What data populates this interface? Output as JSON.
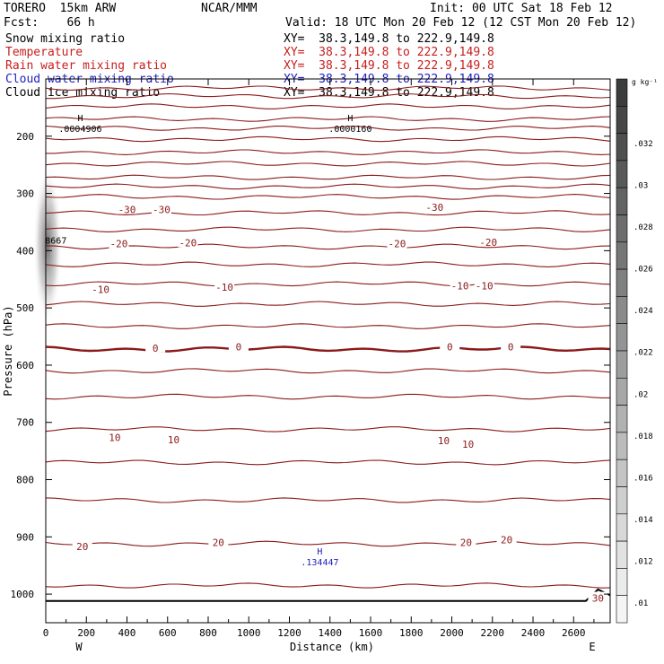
{
  "header": {
    "model": "TORERO  15km ARW",
    "org": "NCAR/MMM",
    "init": "Init: 00 UTC Sat 18 Feb 12",
    "fcst": "Fcst:    66 h",
    "valid": "Valid: 18 UTC Mon 20 Feb 12 (12 CST Mon 20 Feb 12)",
    "fields": [
      {
        "name": "Snow mixing ratio",
        "xy": "XY=  38.3,149.8 to 222.9,149.8",
        "color": "#000000"
      },
      {
        "name": "Temperature",
        "xy": "XY=  38.3,149.8 to 222.9,149.8",
        "color": "#c81e1e"
      },
      {
        "name": "Rain water mixing ratio",
        "xy": "XY=  38.3,149.8 to 222.9,149.8",
        "color": "#c81e1e"
      },
      {
        "name": "Cloud water mixing ratio",
        "xy": "XY=  38.3,149.8 to 222.9,149.8",
        "color": "#2020c0"
      },
      {
        "name": "Cloud ice mixing ratio",
        "xy": "XY=  38.3,149.8 to 222.9,149.8",
        "color": "#000000"
      }
    ]
  },
  "chart_data": {
    "type": "line",
    "xlabel": "Distance (km)",
    "ylabel": "Pressure (hPa)",
    "xlim": [
      0,
      2780
    ],
    "ylim": [
      1050,
      100
    ],
    "x_ticks": [
      0,
      200,
      400,
      600,
      800,
      1000,
      1200,
      1400,
      1600,
      1800,
      2000,
      2200,
      2400,
      2600
    ],
    "y_ticks": [
      200,
      300,
      400,
      500,
      600,
      700,
      800,
      900,
      1000
    ],
    "end_labels": {
      "left": "W",
      "right": "E"
    },
    "isotherm_color": "#8b1a1a",
    "isotherm_pressures": [
      116,
      130,
      148,
      170,
      186,
      205,
      228,
      248,
      272,
      288,
      306,
      334,
      363,
      393,
      424,
      458,
      493,
      532,
      572,
      610,
      655,
      712,
      770,
      836,
      912,
      985
    ],
    "temperature_labels": [
      {
        "text": "-30",
        "x": 400,
        "p": 328
      },
      {
        "text": "-30",
        "x": 570,
        "p": 328
      },
      {
        "text": "-30",
        "x": 1915,
        "p": 324
      },
      {
        "text": "-20",
        "x": 360,
        "p": 388
      },
      {
        "text": "-20",
        "x": 700,
        "p": 386
      },
      {
        "text": "-20",
        "x": 1730,
        "p": 388
      },
      {
        "text": "-20",
        "x": 2180,
        "p": 385
      },
      {
        "text": "-10",
        "x": 270,
        "p": 468
      },
      {
        "text": "-10",
        "x": 880,
        "p": 464
      },
      {
        "text": "-10",
        "x": 2040,
        "p": 461
      },
      {
        "text": "-10",
        "x": 2160,
        "p": 461
      },
      {
        "text": "0",
        "x": 540,
        "p": 570
      },
      {
        "text": "0",
        "x": 950,
        "p": 568
      },
      {
        "text": "0",
        "x": 1990,
        "p": 568
      },
      {
        "text": "0",
        "x": 2290,
        "p": 568
      },
      {
        "text": "10",
        "x": 340,
        "p": 726
      },
      {
        "text": "10",
        "x": 630,
        "p": 730
      },
      {
        "text": "10",
        "x": 1960,
        "p": 732
      },
      {
        "text": "10",
        "x": 2080,
        "p": 738
      },
      {
        "text": "20",
        "x": 180,
        "p": 917
      },
      {
        "text": "20",
        "x": 850,
        "p": 910
      },
      {
        "text": "20",
        "x": 2070,
        "p": 910
      },
      {
        "text": "20",
        "x": 2270,
        "p": 905
      },
      {
        "text": "30",
        "x": 2720,
        "p": 1007
      }
    ],
    "maxima": [
      {
        "text": "H",
        "value": ".0004906",
        "x": 170,
        "p": 183,
        "color": "#000000"
      },
      {
        "text": "H",
        "value": ".0000160",
        "x": 1500,
        "p": 183,
        "color": "#000000"
      },
      {
        "text": "H",
        "value": ".134447",
        "x": 1350,
        "p": 940,
        "color": "#2020c0"
      },
      {
        "text": "",
        "value": "8667",
        "x": 50,
        "p": 378,
        "color": "#000000"
      }
    ],
    "colorbar": {
      "unit": "g kg⁻¹",
      "labels": [
        ".032",
        ".03",
        ".028",
        ".026",
        ".024",
        ".022",
        ".02",
        ".018",
        ".016",
        ".014",
        ".012",
        ".01"
      ],
      "levels": 20
    }
  }
}
